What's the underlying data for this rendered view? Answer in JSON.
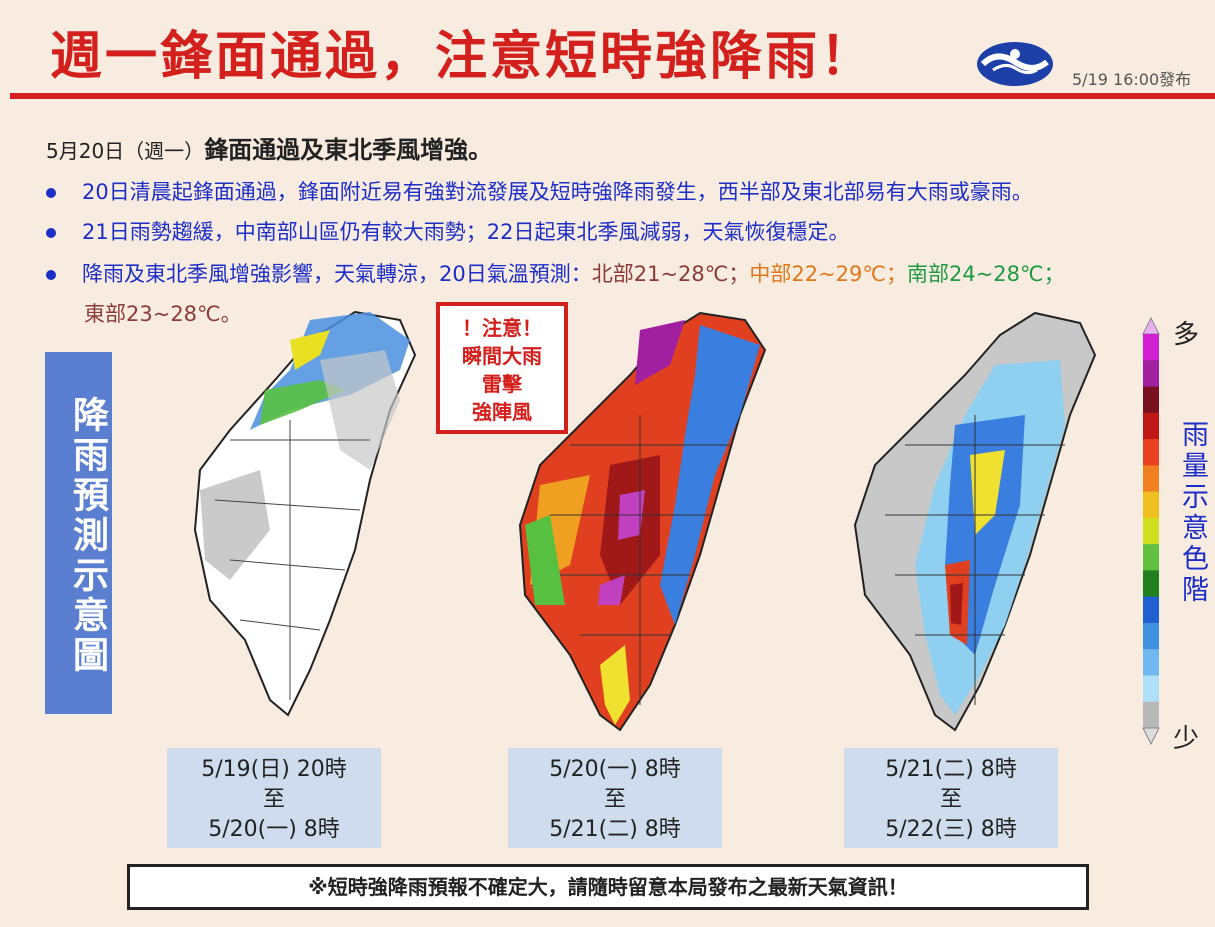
{
  "header": {
    "title": "週一鋒面通過，注意短時強降雨！",
    "issue_time": "5/19  16:00發布",
    "logo_icon": "cwa-logo-icon"
  },
  "summary": {
    "date": "5月20日（週一）",
    "headline": "鋒面通過及東北季風增強。",
    "bullets": [
      "20日清晨起鋒面通過，鋒面附近易有強對流發展及短時強降雨發生，西半部及東北部易有大雨或豪雨。",
      "21日雨勢趨緩，中南部山區仍有較大雨勢；22日起東北季風減弱，天氣恢復穩定。"
    ],
    "temp_intro": "降雨及東北季風增強影響，天氣轉涼，20日氣溫預測：",
    "temp_north": "北部21~28℃；",
    "temp_central": "中部22~29℃；",
    "temp_south": "南部24~28℃；",
    "temp_east": "東部23~28℃。"
  },
  "side_title": "降雨預測示意圖",
  "warning": {
    "line1": "！注意！",
    "line2": "瞬間大雨",
    "line3": "雷擊",
    "line4": "強陣風"
  },
  "panels": [
    {
      "start": "5/19(日) 20時",
      "sep": "至",
      "end": "5/20(一) 8時"
    },
    {
      "start": "5/20(一) 8時",
      "sep": "至",
      "end": "5/21(二) 8時"
    },
    {
      "start": "5/21(二) 8時",
      "sep": "至",
      "end": "5/22(三) 8時"
    }
  ],
  "legend": {
    "more": "多",
    "less": "少",
    "caption": "雨量示意色階",
    "colors": [
      "#d020d0",
      "#a020a0",
      "#7a1020",
      "#c01818",
      "#e84020",
      "#f08020",
      "#f0c020",
      "#d0e020",
      "#60c040",
      "#208020",
      "#2060d0",
      "#4090e0",
      "#70b8f0",
      "#b0e0f8",
      "#b8b8b8"
    ]
  },
  "footnote": "※短時強降雨預報不確定大，請隨時留意本局發布之最新天氣資訊！"
}
